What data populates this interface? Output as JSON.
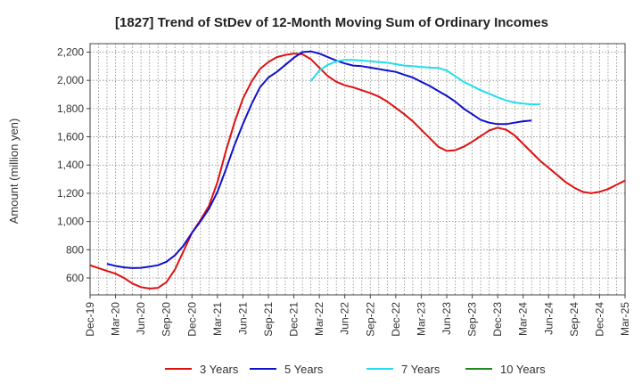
{
  "chart_data": {
    "type": "line",
    "title": "[1827]  Trend of StDev of 12-Month Moving Sum of Ordinary Incomes",
    "xlabel": "",
    "ylabel": "Amount (million yen)",
    "x_ticks": [
      "Dec-19",
      "Mar-20",
      "Jun-20",
      "Sep-20",
      "Dec-20",
      "Mar-21",
      "Jun-21",
      "Sep-21",
      "Dec-21",
      "Mar-22",
      "Jun-22",
      "Sep-22",
      "Dec-22",
      "Mar-23",
      "Jun-23",
      "Sep-23",
      "Dec-23",
      "Mar-24",
      "Jun-24",
      "Sep-24",
      "Dec-24",
      "Mar-25"
    ],
    "y_ticks": [
      600,
      800,
      1000,
      1200,
      1400,
      1600,
      1800,
      2000,
      2200
    ],
    "y_tick_labels": [
      "600",
      "800",
      "1,000",
      "1,200",
      "1,400",
      "1,600",
      "1,800",
      "2,000",
      "2,200"
    ],
    "xlim": [
      0,
      63
    ],
    "ylim": [
      480,
      2260
    ],
    "grid": true,
    "series": [
      {
        "name": "3 Years",
        "color": "#dd1111",
        "start_index": 0,
        "values": [
          690,
          670,
          650,
          630,
          600,
          560,
          535,
          525,
          530,
          570,
          660,
          790,
          920,
          1010,
          1110,
          1280,
          1500,
          1700,
          1870,
          1990,
          2080,
          2130,
          2165,
          2180,
          2190,
          2185,
          2150,
          2090,
          2030,
          1990,
          1965,
          1950,
          1930,
          1910,
          1885,
          1850,
          1805,
          1760,
          1710,
          1650,
          1590,
          1530,
          1500,
          1505,
          1530,
          1565,
          1605,
          1645,
          1665,
          1650,
          1610,
          1550,
          1490,
          1430,
          1380,
          1330,
          1280,
          1240,
          1210,
          1200,
          1210,
          1230,
          1260,
          1290
        ]
      },
      {
        "name": "5 Years",
        "color": "#1111cc",
        "start_index": 2,
        "values": [
          700,
          685,
          675,
          670,
          672,
          680,
          690,
          715,
          760,
          830,
          920,
          1000,
          1090,
          1210,
          1370,
          1540,
          1690,
          1830,
          1950,
          2020,
          2060,
          2110,
          2160,
          2200,
          2205,
          2190,
          2165,
          2140,
          2120,
          2105,
          2100,
          2090,
          2080,
          2070,
          2060,
          2040,
          2020,
          1990,
          1960,
          1925,
          1890,
          1850,
          1800,
          1760,
          1720,
          1700,
          1690,
          1690,
          1700,
          1710,
          1715
        ]
      },
      {
        "name": "7 Years",
        "color": "#22ddee",
        "start_index": 26,
        "values": [
          1995,
          2070,
          2110,
          2135,
          2145,
          2145,
          2140,
          2135,
          2130,
          2125,
          2115,
          2105,
          2100,
          2095,
          2090,
          2088,
          2070,
          2030,
          1990,
          1960,
          1930,
          1905,
          1880,
          1858,
          1843,
          1835,
          1830,
          1830
        ]
      },
      {
        "name": "10 Years",
        "color": "#228822",
        "start_index": 0,
        "values": []
      }
    ]
  }
}
